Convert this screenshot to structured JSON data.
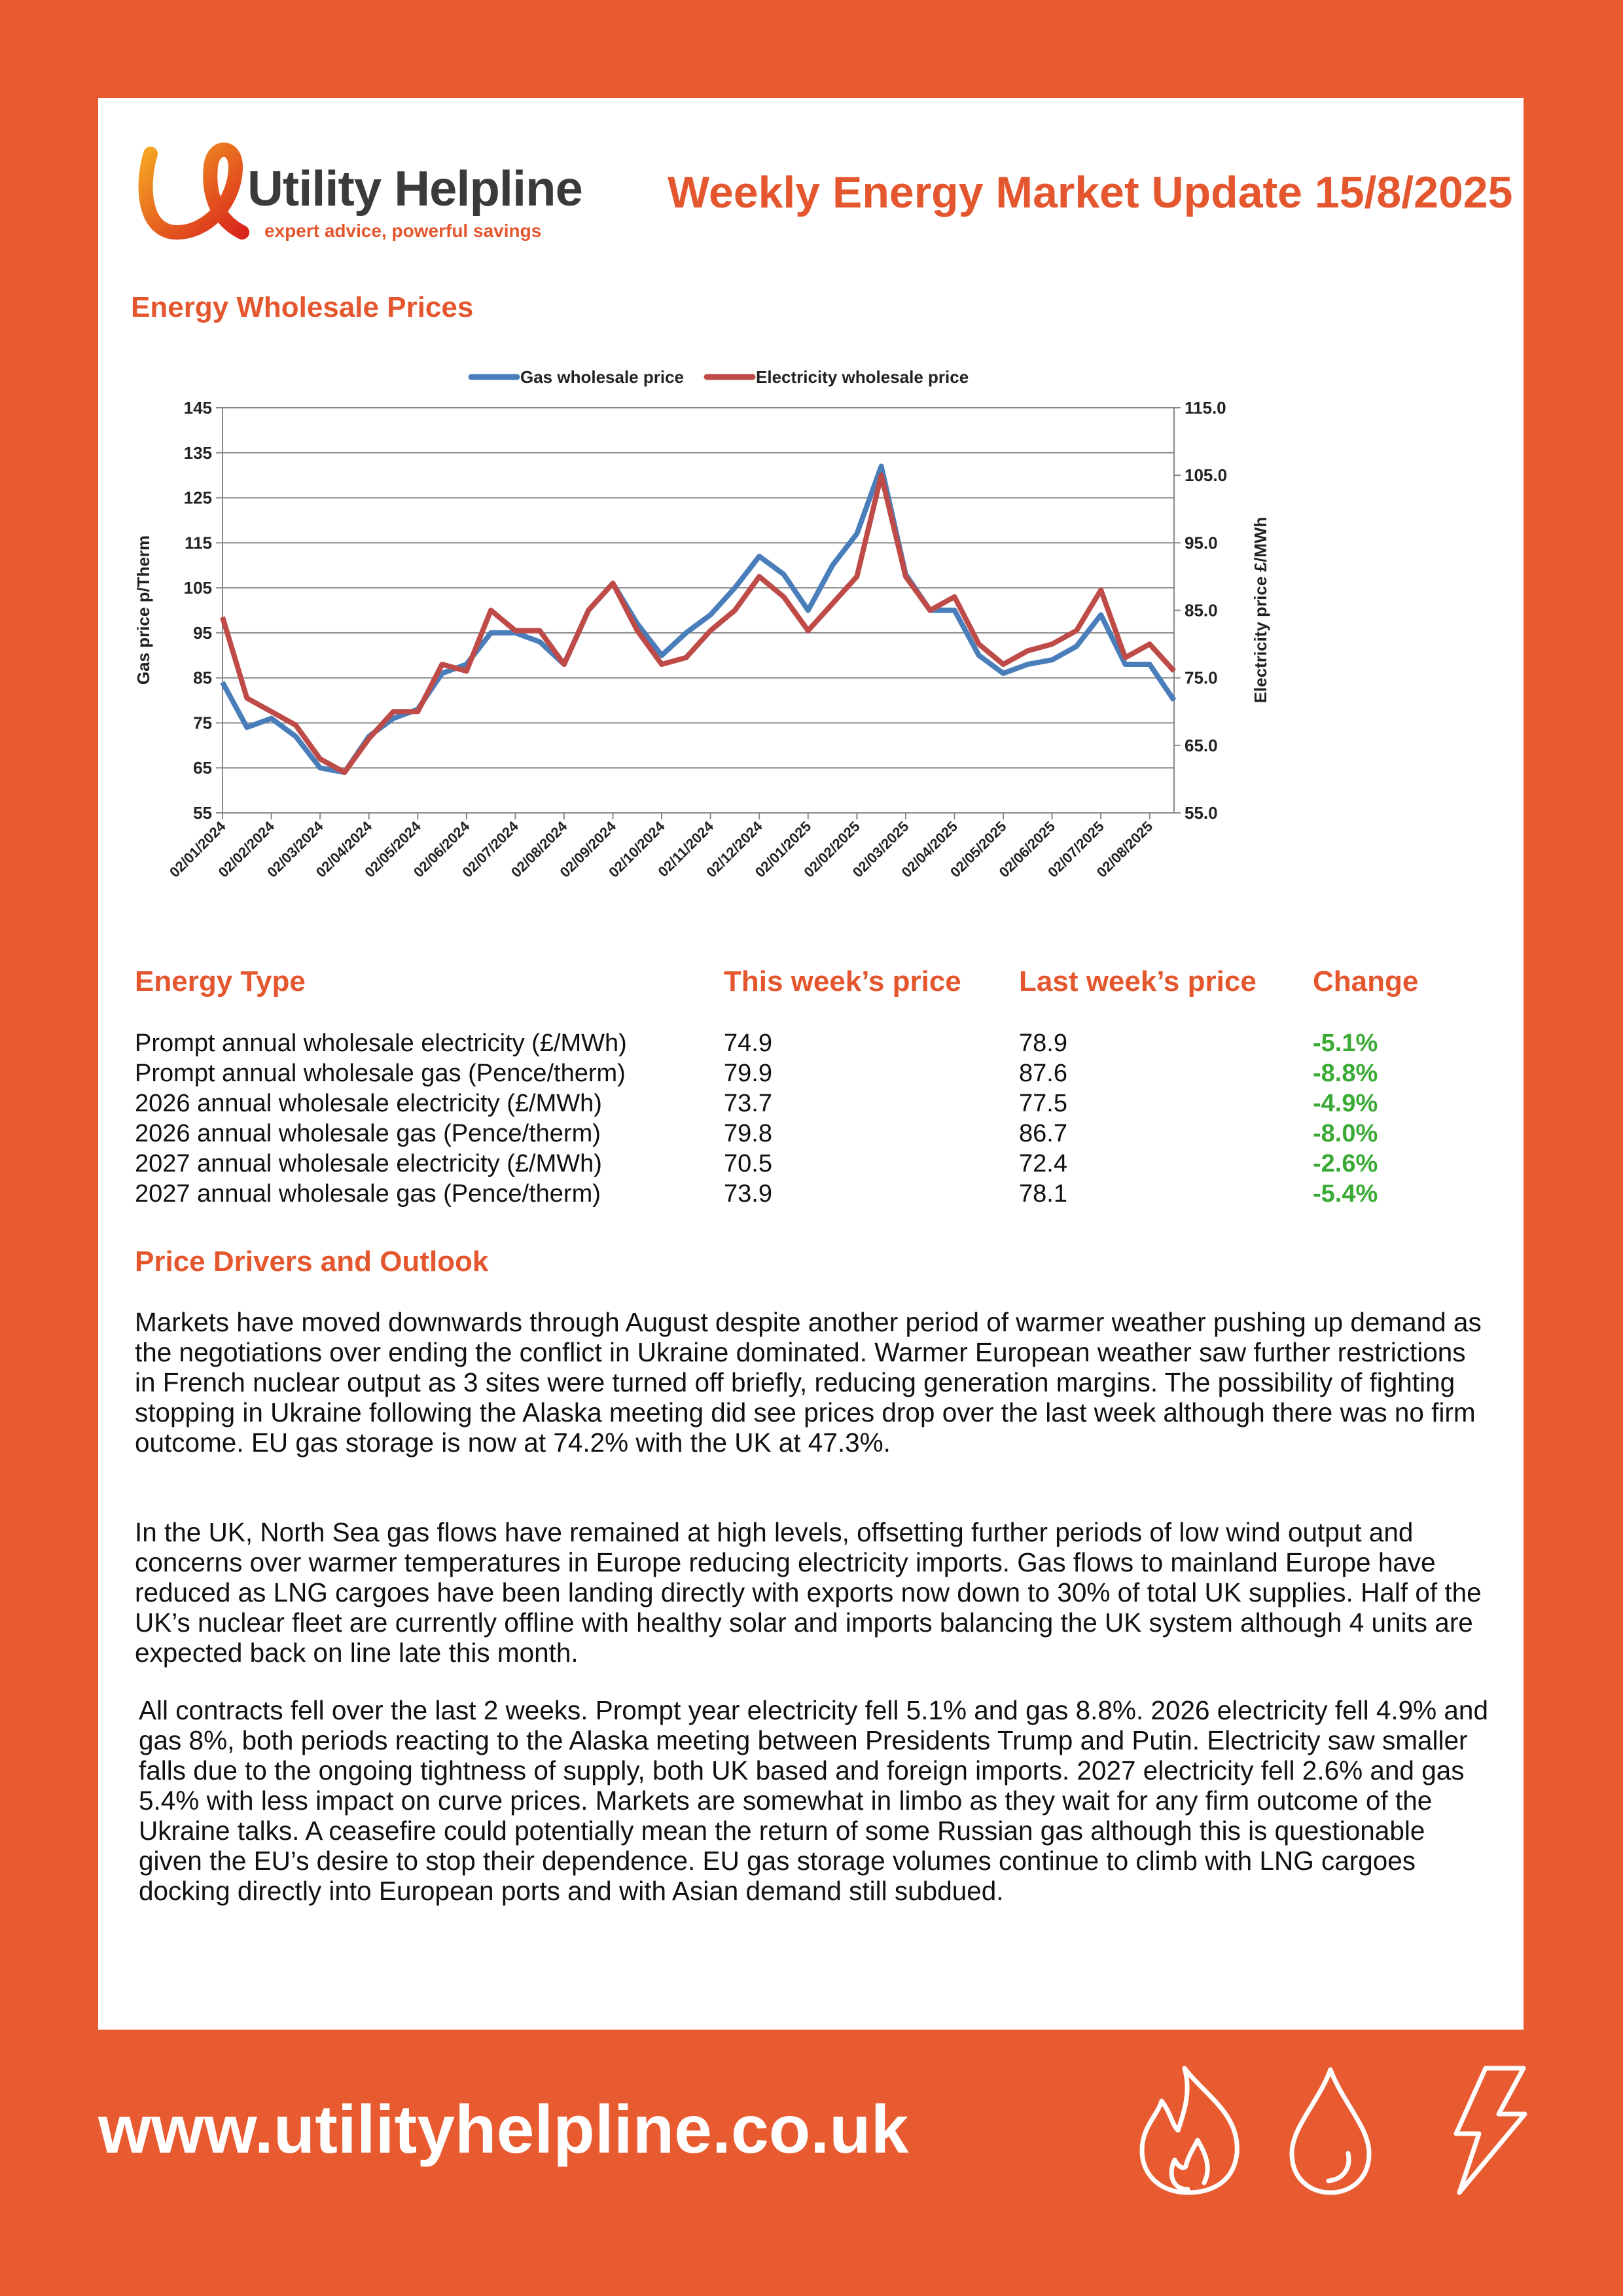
{
  "header": {
    "brand": "Utility Helpline",
    "tagline": "expert advice, powerful savings",
    "title": "Weekly Energy Market Update 15/8/2025"
  },
  "chart_heading": "Energy Wholesale Prices",
  "chart_data": {
    "type": "line",
    "categories": [
      "02/01/2024",
      null,
      "02/02/2024",
      null,
      "02/03/2024",
      null,
      "02/04/2024",
      null,
      "02/05/2024",
      null,
      "02/06/2024",
      null,
      "02/07/2024",
      null,
      "02/08/2024",
      null,
      "02/09/2024",
      null,
      "02/10/2024",
      null,
      "02/11/2024",
      null,
      "02/12/2024",
      null,
      "02/01/2025",
      null,
      "02/02/2025",
      null,
      "02/03/2025",
      null,
      "02/04/2025",
      null,
      "02/05/2025",
      null,
      "02/06/2025",
      null,
      "02/07/2025",
      null,
      "02/08/2025",
      null
    ],
    "series": [
      {
        "name": "Gas wholesale price",
        "color": "#4a7ebb",
        "axis": "y",
        "values": [
          84,
          74,
          76,
          72,
          65,
          64,
          72,
          76,
          78,
          86,
          88,
          95,
          95,
          93,
          88,
          100,
          106,
          97,
          90,
          95,
          99,
          105,
          112,
          108,
          100,
          110,
          117,
          132,
          108,
          100,
          100,
          90,
          86,
          88,
          89,
          92,
          99,
          88,
          88,
          80
        ]
      },
      {
        "name": "Electricity wholesale price",
        "color": "#be4b48",
        "axis": "y2",
        "values": [
          84,
          72,
          70,
          68,
          63,
          61,
          66,
          70,
          70,
          77,
          76,
          85,
          82,
          82,
          77,
          85,
          89,
          82,
          77,
          78,
          82,
          85,
          90,
          87,
          82,
          86,
          90,
          105,
          90,
          85,
          87,
          80,
          77,
          79,
          80,
          82,
          88,
          78,
          80,
          76
        ]
      }
    ],
    "ylabel": "Gas price p/Therm",
    "y2label": "Electricity price £/MWh",
    "ylim": [
      55,
      145
    ],
    "yticks": [
      55,
      65,
      75,
      85,
      95,
      105,
      115,
      125,
      135,
      145
    ],
    "y2lim": [
      55,
      115
    ],
    "y2ticks": [
      {
        "value": 55,
        "label": "55.0"
      },
      {
        "value": 65,
        "label": "65.0"
      },
      {
        "value": 75,
        "label": "75.0"
      },
      {
        "value": 85,
        "label": "85.0"
      },
      {
        "value": 95,
        "label": "95.0"
      },
      {
        "value": 105,
        "label": "105.0"
      },
      {
        "value": 115,
        "label": "115.0"
      }
    ],
    "grid": true,
    "legend": "top"
  },
  "table": {
    "headers": [
      "Energy Type",
      "This week’s price",
      "Last week’s price",
      "Change"
    ],
    "rows": [
      [
        "Prompt annual wholesale electricity (£/MWh)",
        "74.9",
        "78.9",
        "-5.1%"
      ],
      [
        "Prompt annual wholesale gas (Pence/therm)",
        "79.9",
        "87.6",
        "-8.8%"
      ],
      [
        "2026 annual wholesale electricity (£/MWh)",
        "73.7",
        "77.5",
        "-4.9%"
      ],
      [
        "2026 annual wholesale gas (Pence/therm)",
        "79.8",
        "86.7",
        "-8.0%"
      ],
      [
        "2027 annual wholesale electricity (£/MWh)",
        "70.5",
        "72.4",
        "-2.6%"
      ],
      [
        "2027 annual wholesale gas (Pence/therm)",
        "73.9",
        "78.1",
        "-5.4%"
      ]
    ]
  },
  "outlook": {
    "heading": "Price Drivers and Outlook",
    "paragraphs": [
      "Markets have moved downwards through August despite another period of warmer weather pushing up demand as the negotiations over ending the conflict in Ukraine dominated. Warmer European weather saw further restrictions in French nuclear output as 3 sites were turned off briefly, reducing generation margins. The possibility of fighting stopping in Ukraine following the Alaska meeting did see prices drop over the last week although there was no firm outcome. EU gas storage is now at 74.2% with the UK at 47.3%.",
      "In the UK, North Sea gas flows have remained at high levels, offsetting further periods of low wind output and concerns over warmer temperatures in Europe reducing electricity imports. Gas flows to mainland Europe have reduced as LNG cargoes have been landing directly with exports now down to 30% of total UK supplies. Half of the UK’s nuclear fleet are currently offline with healthy solar and imports balancing the UK system although 4 units are expected back on line late this month.",
      "All contracts fell over the last 2 weeks. Prompt year electricity fell 5.1% and gas 8.8%. 2026 electricity fell 4.9% and gas 8%, both periods reacting to the Alaska meeting between Presidents Trump and Putin. Electricity saw smaller falls due to the ongoing tightness of supply, both UK based and foreign imports. 2027 electricity fell 2.6% and gas 5.4% with less impact on curve prices. Markets are somewhat in limbo as they wait for any firm outcome of the Ukraine talks. A ceasefire could potentially mean the return of some Russian gas although this is questionable given the EU’s desire to stop their dependence. EU gas storage volumes continue to climb with LNG cargoes docking directly into European ports and with Asian demand still subdued."
    ]
  },
  "footer": {
    "url": "www.utilityhelpline.co.uk"
  }
}
